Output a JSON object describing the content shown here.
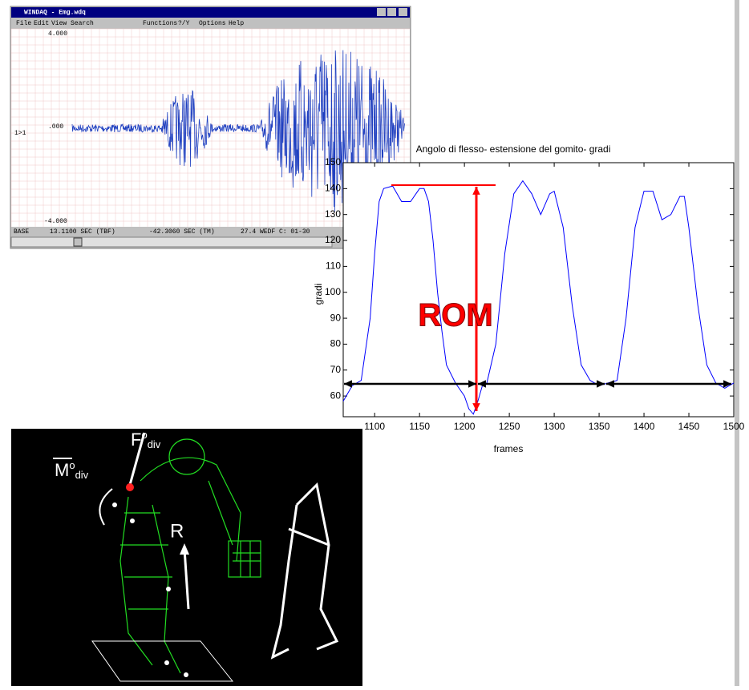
{
  "windaq": {
    "title": "WINDAQ - Emg.wdq",
    "menu": [
      "File",
      "Edit",
      "View",
      "Search",
      "Functions",
      "?/Y",
      "Options",
      "Help"
    ],
    "y_labels": [
      "4.000",
      ".000",
      "-4.000"
    ],
    "channel": "1>1",
    "status": [
      "BASE",
      "13.1100 SEC (TBF)",
      "-42.3060 SEC (TM)",
      "27.4 WEDF C: 01-30"
    ]
  },
  "chart_data": {
    "type": "line",
    "title": "Angolo di flesso- estensione del gomito- gradi",
    "x_label": "frames",
    "y_label": "gradi",
    "annotation": "ROM",
    "x": [
      1065,
      1075,
      1085,
      1095,
      1100,
      1105,
      1110,
      1120,
      1130,
      1140,
      1150,
      1155,
      1160,
      1165,
      1170,
      1175,
      1180,
      1190,
      1200,
      1205,
      1210,
      1215,
      1220,
      1225,
      1235,
      1245,
      1255,
      1265,
      1275,
      1285,
      1295,
      1300,
      1310,
      1320,
      1330,
      1340,
      1350,
      1360,
      1370,
      1380,
      1390,
      1400,
      1410,
      1420,
      1430,
      1440,
      1445,
      1450,
      1460,
      1470,
      1480,
      1490,
      1500
    ],
    "values": [
      58,
      64,
      66,
      90,
      115,
      135,
      140,
      141,
      135,
      135,
      140,
      140,
      135,
      120,
      100,
      85,
      72,
      65,
      60,
      55,
      53,
      58,
      64,
      65,
      80,
      115,
      138,
      143,
      138,
      130,
      138,
      139,
      125,
      95,
      72,
      66,
      64,
      65,
      66,
      90,
      125,
      139,
      139,
      128,
      130,
      137,
      137,
      125,
      95,
      72,
      65,
      63,
      65
    ],
    "color": "#0000ff",
    "xlim": [
      1065,
      1500
    ],
    "ylim": [
      52,
      150
    ],
    "xticks": [
      1100,
      1150,
      1200,
      1250,
      1300,
      1350,
      1400,
      1450,
      1500
    ],
    "yticks": [
      60,
      70,
      80,
      90,
      100,
      110,
      120,
      130,
      140,
      150
    ]
  },
  "figure": {
    "labels": [
      "F",
      "o",
      "div",
      "M",
      "o",
      "div",
      "R"
    ]
  }
}
